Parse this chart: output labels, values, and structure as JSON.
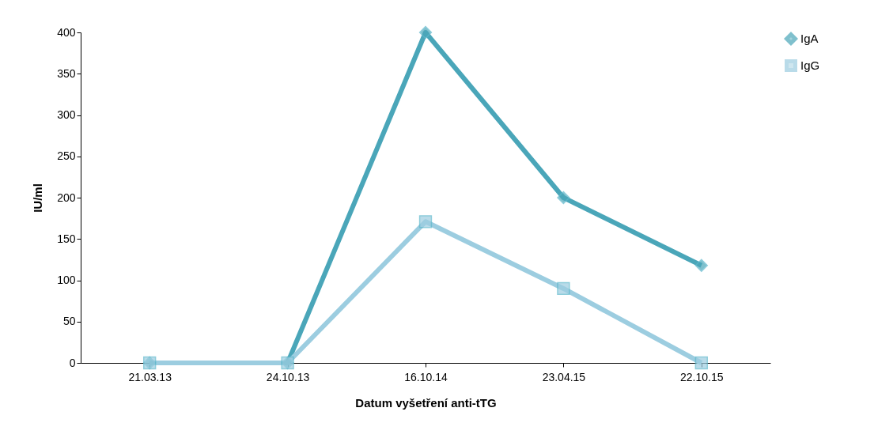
{
  "chart_data": {
    "type": "line",
    "xlabel": "Datum vyšetření anti-tTG",
    "ylabel": "IU/ml",
    "categories": [
      "21.03.13",
      "24.10.13",
      "16.10.14",
      "23.04.15",
      "22.10.15"
    ],
    "series": [
      {
        "name": "IgA",
        "color": "#4aa6b9",
        "marker": "diamond",
        "values": [
          0,
          0,
          400,
          200,
          118
        ]
      },
      {
        "name": "IgG",
        "color": "#9ccde0",
        "marker": "square",
        "values": [
          0,
          0,
          171,
          90,
          0
        ]
      }
    ],
    "ylim": [
      0,
      400
    ],
    "yticks": [
      0,
      50,
      100,
      150,
      200,
      250,
      300,
      350,
      400
    ],
    "grid": false,
    "legend": "right",
    "line_style": "solid"
  }
}
